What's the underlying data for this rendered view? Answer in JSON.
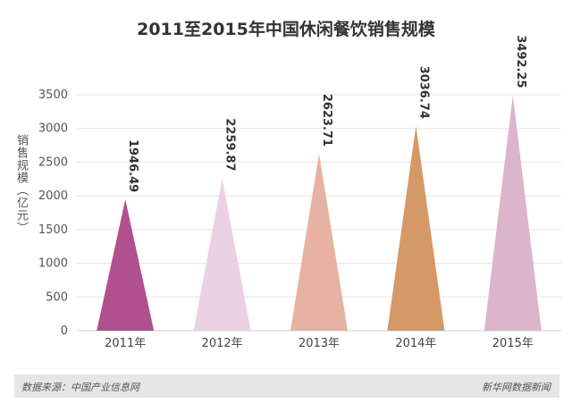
{
  "chart_data": {
    "type": "bar",
    "title": "2011至2015年中国休闲餐饮销售规模",
    "ylabel": "销售规模（亿元）",
    "xlabel": "",
    "categories": [
      "2011年",
      "2012年",
      "2013年",
      "2014年",
      "2015年"
    ],
    "values": [
      1946.49,
      2259.87,
      2623.71,
      3036.74,
      3492.25
    ],
    "data_labels": [
      "1946.49",
      "2259.87",
      "2623.71",
      "3036.74",
      "3492.25"
    ],
    "ylim": [
      0,
      3500
    ],
    "yticks": [
      0,
      500,
      1000,
      1500,
      2000,
      2500,
      3000,
      3500
    ],
    "bar_shape": "triangle",
    "colors": [
      "#b0508f",
      "#ead2e4",
      "#e7b2a3",
      "#d59867",
      "#dbb5cc"
    ],
    "grid": true,
    "legend": "none"
  },
  "footer": {
    "source": "数据来源：中国产业信息网",
    "credit": "新华网数据新闻"
  }
}
